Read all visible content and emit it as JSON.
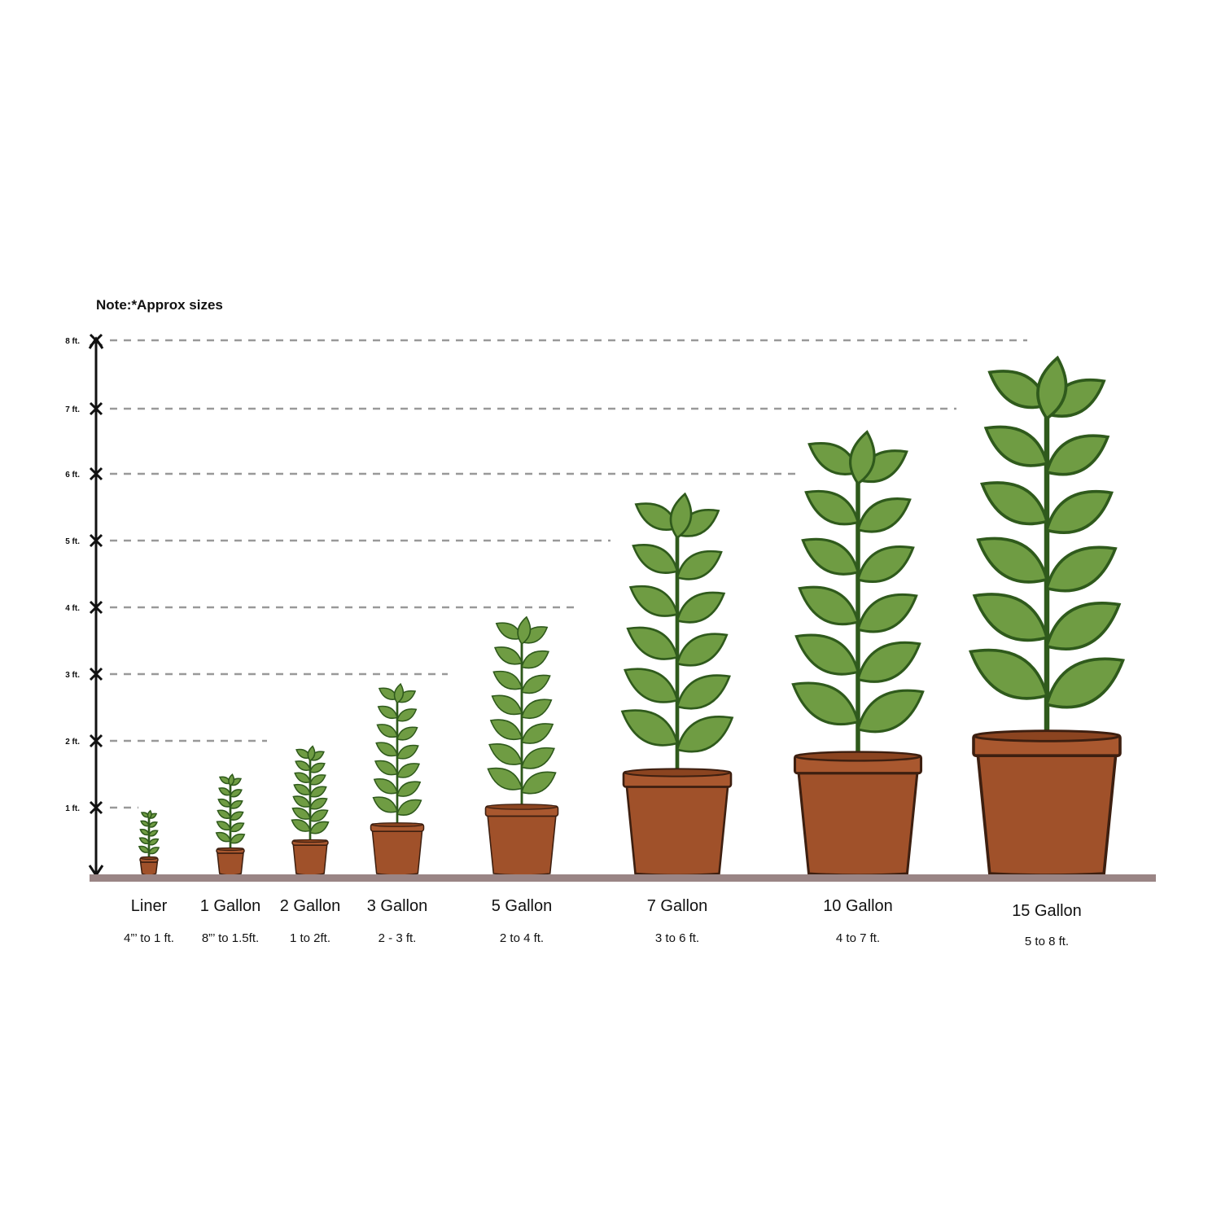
{
  "note": "Note:*Approx sizes",
  "scale": {
    "labels": [
      "1 ft.",
      "2 ft.",
      "3 ft.",
      "4 ft.",
      "5 ft.",
      "6 ft.",
      "7 ft.",
      "8 ft."
    ]
  },
  "sizes": [
    {
      "name": "Liner",
      "range": "4”’ to 1 ft."
    },
    {
      "name": "1 Gallon",
      "range": "8”’ to 1.5ft."
    },
    {
      "name": "2 Gallon",
      "range": "1 to 2ft."
    },
    {
      "name": "3 Gallon",
      "range": "2 - 3 ft."
    },
    {
      "name": "5 Gallon",
      "range": "2 to 4 ft."
    },
    {
      "name": "7 Gallon",
      "range": "3 to 6 ft."
    },
    {
      "name": "10 Gallon",
      "range": "4 to 7 ft."
    },
    {
      "name": "15 Gallon",
      "range": "5 to 8 ft."
    }
  ]
}
